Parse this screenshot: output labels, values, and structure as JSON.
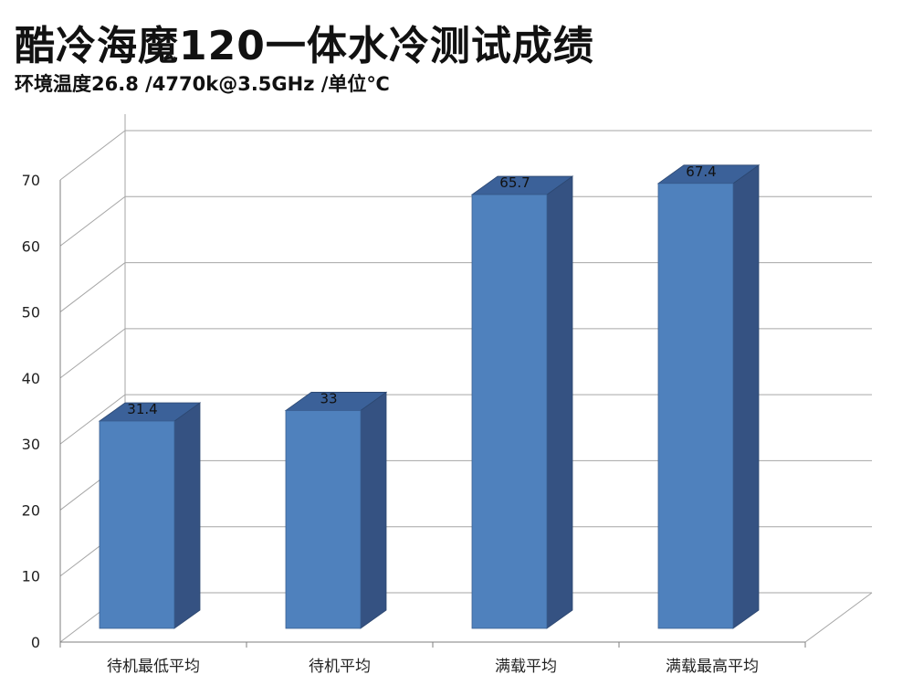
{
  "title": "酷冷海魔120一体水冷测试成绩",
  "subtitle": "环境温度26.8 /4770k@3.5GHz /单位℃",
  "chart_data": {
    "type": "bar",
    "style": "3d-column",
    "categories": [
      "待机最低平均",
      "待机平均",
      "满载平均",
      "满载最高平均"
    ],
    "values": [
      31.4,
      33,
      65.7,
      67.4
    ],
    "data_labels": [
      "31.4",
      "33",
      "65.7",
      "67.4"
    ],
    "ylim": [
      0,
      70
    ],
    "yticks": [
      0,
      10,
      20,
      30,
      40,
      50,
      60,
      70
    ],
    "grid": true,
    "legend": "none",
    "colors": {
      "bar_front": "#4f81bd",
      "bar_side": "#355282",
      "bar_top": "#3b6199",
      "grid": "#a6a6a6"
    }
  }
}
